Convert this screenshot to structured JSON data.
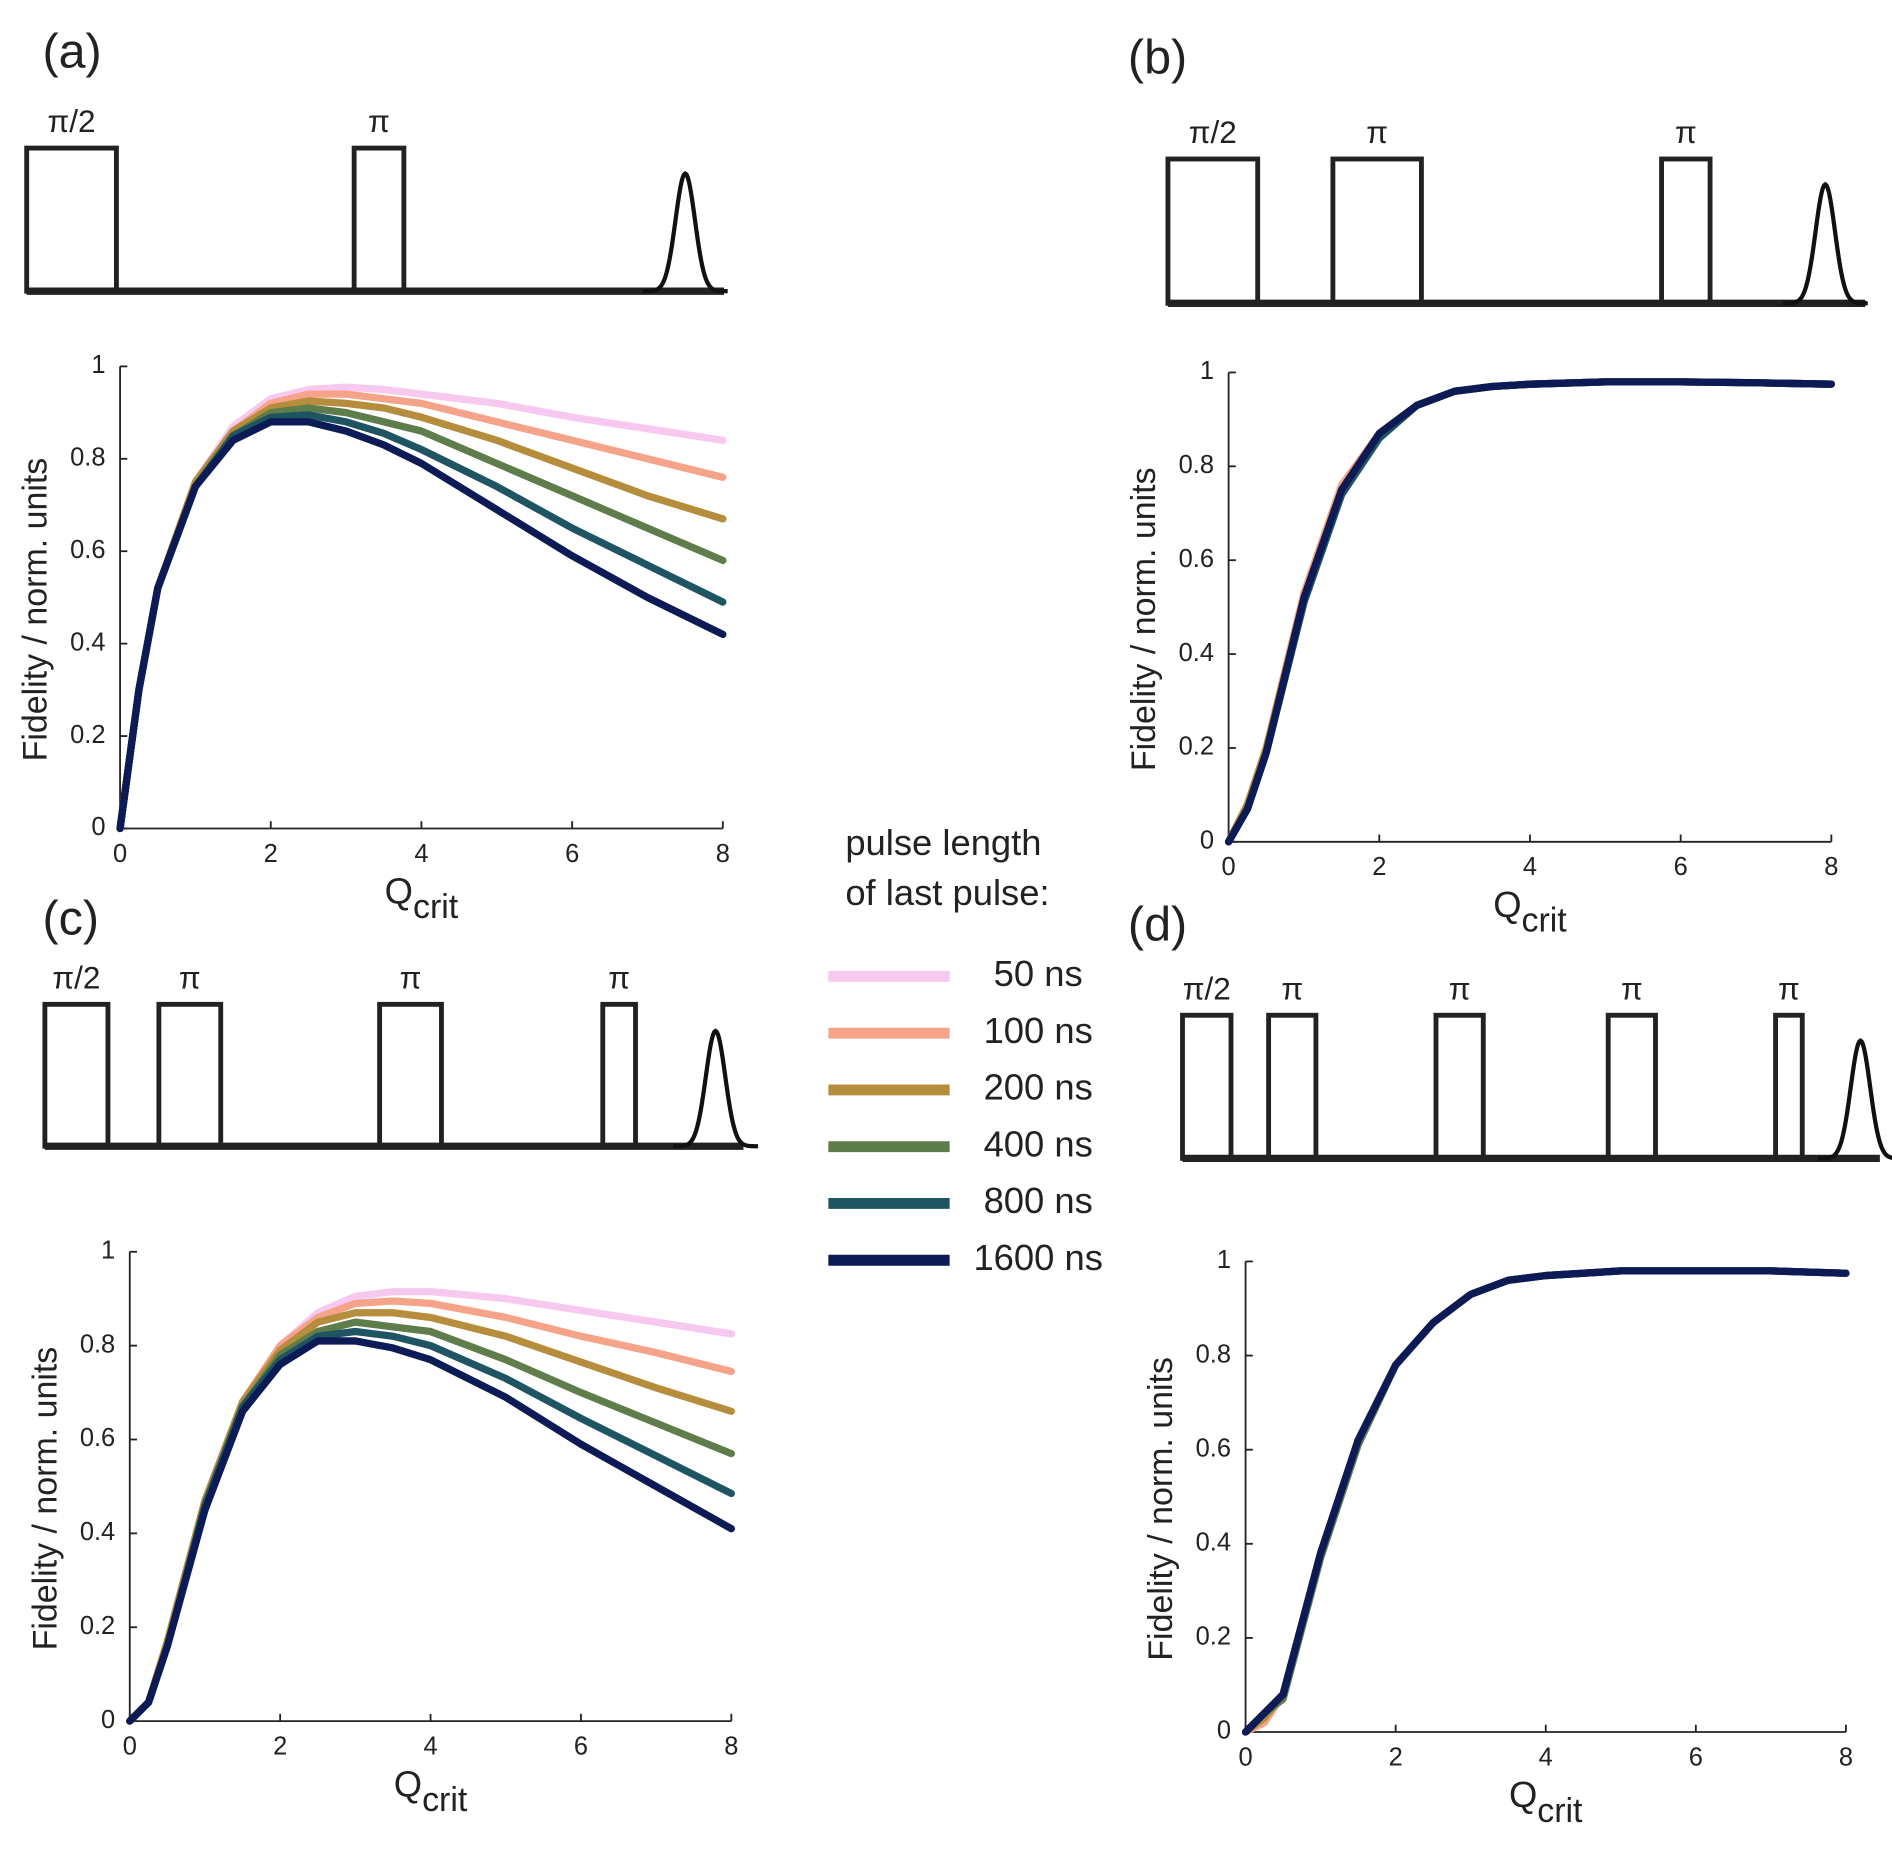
{
  "legend": {
    "title": [
      "pulse length",
      "of last pulse:"
    ],
    "entries": [
      {
        "name": "50 ns",
        "color": "#f7c9f0"
      },
      {
        "name": "100 ns",
        "color": "#f5a48a"
      },
      {
        "name": "200 ns",
        "color": "#b58d3c"
      },
      {
        "name": "400 ns",
        "color": "#5e7d4a"
      },
      {
        "name": "800 ns",
        "color": "#1f5463"
      },
      {
        "name": "1600 ns",
        "color": "#0c1a55"
      }
    ]
  },
  "chart_data": [
    {
      "type": "line",
      "panel_label": "(a)",
      "pulse_labels": [
        "π/2",
        "π"
      ],
      "ylabel": "Fidelity / norm. units",
      "xlabel": {
        "main": "Q",
        "sub": "crit"
      },
      "xlim": [
        0,
        8
      ],
      "ylim": [
        0,
        1
      ],
      "xticks": [
        0,
        2,
        4,
        6,
        8
      ],
      "yticks": [
        0,
        0.2,
        0.4,
        0.6,
        0.8,
        1
      ],
      "x": [
        0,
        0.25,
        0.5,
        1,
        1.5,
        2,
        2.5,
        3,
        3.5,
        4,
        5,
        6,
        7,
        8
      ],
      "series": [
        {
          "values": [
            0,
            0.3,
            0.52,
            0.75,
            0.87,
            0.93,
            0.95,
            0.955,
            0.95,
            0.94,
            0.92,
            0.89,
            0.865,
            0.84
          ]
        },
        {
          "values": [
            0,
            0.3,
            0.52,
            0.75,
            0.86,
            0.92,
            0.94,
            0.94,
            0.93,
            0.92,
            0.88,
            0.84,
            0.8,
            0.76
          ]
        },
        {
          "values": [
            0,
            0.3,
            0.52,
            0.75,
            0.86,
            0.91,
            0.925,
            0.92,
            0.91,
            0.89,
            0.84,
            0.78,
            0.72,
            0.67
          ]
        },
        {
          "values": [
            0,
            0.3,
            0.52,
            0.74,
            0.85,
            0.9,
            0.91,
            0.9,
            0.88,
            0.86,
            0.79,
            0.72,
            0.65,
            0.58
          ]
        },
        {
          "values": [
            0,
            0.3,
            0.52,
            0.74,
            0.85,
            0.89,
            0.895,
            0.88,
            0.855,
            0.82,
            0.74,
            0.65,
            0.57,
            0.49
          ]
        },
        {
          "values": [
            0,
            0.3,
            0.52,
            0.74,
            0.84,
            0.88,
            0.88,
            0.86,
            0.83,
            0.79,
            0.69,
            0.59,
            0.5,
            0.42
          ]
        }
      ]
    },
    {
      "type": "line",
      "panel_label": "(b)",
      "pulse_labels": [
        "π/2",
        "π",
        "π"
      ],
      "ylabel": "Fidelity / norm. units",
      "xlabel": {
        "main": "Q",
        "sub": "crit"
      },
      "xlim": [
        0,
        8
      ],
      "ylim": [
        0,
        1
      ],
      "xticks": [
        0,
        2,
        4,
        6,
        8
      ],
      "yticks": [
        0,
        0.2,
        0.4,
        0.6,
        0.8,
        1
      ],
      "x": [
        0,
        0.25,
        0.5,
        1,
        1.5,
        2,
        2.5,
        3,
        3.5,
        4,
        5,
        6,
        7,
        8
      ],
      "series": [
        {
          "values": [
            0,
            0.08,
            0.2,
            0.53,
            0.76,
            0.87,
            0.93,
            0.96,
            0.97,
            0.975,
            0.98,
            0.98,
            0.978,
            0.975
          ]
        },
        {
          "values": [
            0,
            0.08,
            0.2,
            0.53,
            0.76,
            0.87,
            0.93,
            0.96,
            0.97,
            0.975,
            0.98,
            0.98,
            0.978,
            0.975
          ]
        },
        {
          "values": [
            0,
            0.08,
            0.2,
            0.52,
            0.75,
            0.87,
            0.93,
            0.96,
            0.97,
            0.975,
            0.98,
            0.98,
            0.978,
            0.975
          ]
        },
        {
          "values": [
            0,
            0.07,
            0.19,
            0.51,
            0.74,
            0.86,
            0.93,
            0.96,
            0.97,
            0.975,
            0.98,
            0.98,
            0.978,
            0.975
          ]
        },
        {
          "values": [
            0,
            0.07,
            0.19,
            0.51,
            0.74,
            0.86,
            0.93,
            0.96,
            0.97,
            0.975,
            0.98,
            0.98,
            0.978,
            0.975
          ]
        },
        {
          "values": [
            0,
            0.07,
            0.19,
            0.52,
            0.75,
            0.87,
            0.93,
            0.96,
            0.97,
            0.975,
            0.98,
            0.98,
            0.978,
            0.975
          ]
        }
      ]
    },
    {
      "type": "line",
      "panel_label": "(c)",
      "pulse_labels": [
        "π/2",
        "π",
        "π",
        "π"
      ],
      "ylabel": "Fidelity / norm. units",
      "xlabel": {
        "main": "Q",
        "sub": "crit"
      },
      "xlim": [
        0,
        8
      ],
      "ylim": [
        0,
        1
      ],
      "xticks": [
        0,
        2,
        4,
        6,
        8
      ],
      "yticks": [
        0,
        0.2,
        0.4,
        0.6,
        0.8,
        1
      ],
      "x": [
        0,
        0.25,
        0.5,
        1,
        1.5,
        2,
        2.5,
        3,
        3.5,
        4,
        5,
        6,
        7,
        8
      ],
      "series": [
        {
          "values": [
            0,
            0.04,
            0.17,
            0.47,
            0.68,
            0.8,
            0.87,
            0.905,
            0.915,
            0.915,
            0.9,
            0.875,
            0.85,
            0.825
          ]
        },
        {
          "values": [
            0,
            0.04,
            0.17,
            0.47,
            0.68,
            0.8,
            0.86,
            0.89,
            0.895,
            0.89,
            0.86,
            0.82,
            0.785,
            0.745
          ]
        },
        {
          "values": [
            0,
            0.04,
            0.17,
            0.47,
            0.68,
            0.79,
            0.85,
            0.87,
            0.87,
            0.86,
            0.82,
            0.765,
            0.71,
            0.66
          ]
        },
        {
          "values": [
            0,
            0.04,
            0.16,
            0.46,
            0.67,
            0.78,
            0.83,
            0.85,
            0.84,
            0.83,
            0.77,
            0.7,
            0.635,
            0.57
          ]
        },
        {
          "values": [
            0,
            0.04,
            0.16,
            0.46,
            0.67,
            0.77,
            0.82,
            0.83,
            0.82,
            0.8,
            0.73,
            0.645,
            0.565,
            0.485
          ]
        },
        {
          "values": [
            0,
            0.04,
            0.16,
            0.45,
            0.66,
            0.76,
            0.81,
            0.81,
            0.795,
            0.77,
            0.69,
            0.59,
            0.5,
            0.41
          ]
        }
      ]
    },
    {
      "type": "line",
      "panel_label": "(d)",
      "pulse_labels": [
        "π/2",
        "π",
        "π",
        "π",
        "π"
      ],
      "ylabel": "Fidelity / norm. units",
      "xlabel": {
        "main": "Q",
        "sub": "crit"
      },
      "xlim": [
        0,
        8
      ],
      "ylim": [
        0,
        1
      ],
      "xticks": [
        0,
        2,
        4,
        6,
        8
      ],
      "yticks": [
        0,
        0.2,
        0.4,
        0.6,
        0.8,
        1
      ],
      "x": [
        0,
        0.25,
        0.5,
        1,
        1.5,
        2,
        2.5,
        3,
        3.5,
        4,
        5,
        6,
        7,
        8
      ],
      "series": [
        {
          "values": [
            0,
            0.03,
            0.08,
            0.38,
            0.62,
            0.78,
            0.87,
            0.93,
            0.96,
            0.97,
            0.98,
            0.98,
            0.98,
            0.975
          ]
        },
        {
          "values": [
            0,
            0.02,
            0.08,
            0.38,
            0.62,
            0.78,
            0.87,
            0.93,
            0.96,
            0.97,
            0.98,
            0.98,
            0.98,
            0.975
          ]
        },
        {
          "values": [
            0,
            0.03,
            0.08,
            0.38,
            0.62,
            0.78,
            0.87,
            0.93,
            0.96,
            0.97,
            0.98,
            0.98,
            0.98,
            0.975
          ]
        },
        {
          "values": [
            0,
            0.04,
            0.07,
            0.37,
            0.61,
            0.78,
            0.87,
            0.93,
            0.96,
            0.97,
            0.98,
            0.98,
            0.98,
            0.975
          ]
        },
        {
          "values": [
            0,
            0.04,
            0.08,
            0.38,
            0.62,
            0.78,
            0.87,
            0.93,
            0.96,
            0.97,
            0.98,
            0.98,
            0.98,
            0.975
          ]
        },
        {
          "values": [
            0,
            0.04,
            0.08,
            0.38,
            0.62,
            0.78,
            0.87,
            0.93,
            0.96,
            0.97,
            0.98,
            0.98,
            0.98,
            0.975
          ]
        }
      ]
    }
  ]
}
